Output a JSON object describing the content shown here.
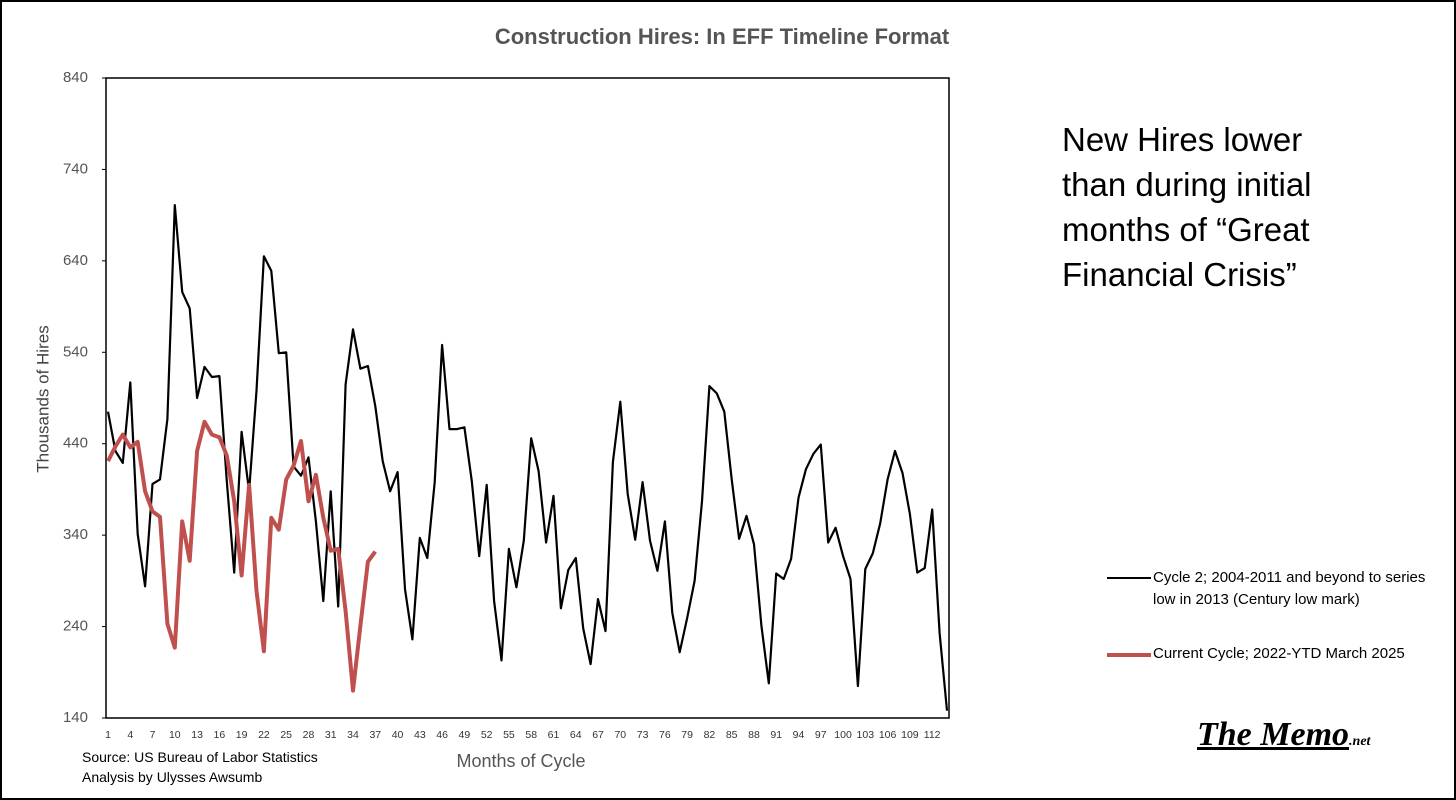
{
  "chart_data": {
    "type": "line",
    "title": "Construction Hires: In EFF Timeline Format",
    "y_label": "Thousands of Hires",
    "x_label": "Months of Cycle",
    "annotation": "New Hires lower than during initial months of “Great Financial Crisis”",
    "source": [
      "Source: US Bureau of Labor Statistics",
      "Analysis by Ulysses Awsumb"
    ],
    "logo": {
      "main": "The Memo",
      "suffix": ".net"
    },
    "categories": [
      1,
      null,
      null,
      4,
      null,
      null,
      7,
      null,
      null,
      10,
      null,
      null,
      13,
      null,
      null,
      16,
      null,
      null,
      19,
      null,
      null,
      22,
      null,
      null,
      25,
      null,
      null,
      28,
      null,
      null,
      31,
      null,
      null,
      34,
      null,
      null,
      37,
      null,
      null,
      40,
      null,
      null,
      43,
      null,
      null,
      46,
      null,
      null,
      49,
      null,
      null,
      52,
      null,
      null,
      55,
      null,
      null,
      58,
      null,
      null,
      61,
      null,
      null,
      64,
      null,
      null,
      67,
      null,
      null,
      70,
      null,
      null,
      73,
      null,
      null,
      76,
      null,
      null,
      79,
      null,
      null,
      82,
      null,
      null,
      85,
      null,
      null,
      88,
      null,
      null,
      91,
      null,
      null,
      94,
      null,
      null,
      97,
      null,
      null,
      100,
      null,
      null,
      103,
      null,
      null,
      106,
      null,
      null,
      109,
      null,
      null,
      112,
      null,
      null
    ],
    "series": [
      {
        "name": "Cycle 2; 2004-2011 and beyond to series low in 2013 (Century low mark)",
        "color": "#000000",
        "width": 2.2,
        "values": [
          475,
          432,
          419,
          507,
          341,
          284,
          396,
          401,
          467,
          701,
          606,
          588,
          490,
          524,
          513,
          514,
          399,
          299,
          453,
          388,
          498,
          645,
          629,
          539,
          540,
          415,
          405,
          425,
          355,
          268,
          388,
          262,
          505,
          565,
          522,
          525,
          481,
          421,
          388,
          409,
          281,
          226,
          337,
          315,
          398,
          548,
          456,
          456,
          458,
          399,
          317,
          395,
          268,
          203,
          325,
          283,
          334,
          446,
          410,
          332,
          383,
          260,
          302,
          315,
          238,
          199,
          270,
          235,
          420,
          486,
          385,
          335,
          398,
          334,
          301,
          355,
          255,
          212,
          249,
          290,
          377,
          503,
          495,
          475,
          401,
          336,
          361,
          330,
          241,
          178,
          298,
          292,
          314,
          381,
          412,
          429,
          439,
          332,
          348,
          317,
          292,
          175,
          303,
          320,
          353,
          401,
          432,
          408,
          363,
          299,
          304,
          368,
          233,
          148
        ]
      },
      {
        "name": "Current Cycle; 2022-YTD March 2025",
        "color": "#c0504d",
        "width": 4,
        "values": [
          421,
          437,
          450,
          436,
          442,
          388,
          366,
          360,
          243,
          217,
          355,
          312,
          432,
          464,
          450,
          447,
          427,
          377,
          296,
          395,
          279,
          213,
          359,
          346,
          401,
          416,
          443,
          377,
          406,
          359,
          323,
          325,
          257,
          170,
          241,
          311,
          322,
          null,
          null,
          null,
          null,
          null,
          null,
          null,
          null,
          null,
          null,
          null,
          null,
          null,
          null,
          null,
          null,
          null,
          null,
          null,
          null,
          null,
          null,
          null,
          null,
          null,
          null,
          null,
          null,
          null,
          null,
          null,
          null,
          null,
          null,
          null,
          null,
          null,
          null,
          null,
          null,
          null,
          null,
          null,
          null,
          null,
          null,
          null,
          null,
          null,
          null,
          null,
          null,
          null,
          null,
          null,
          null,
          null,
          null,
          null,
          null,
          null,
          null,
          null,
          null,
          null,
          null,
          null,
          null,
          null,
          null,
          null,
          null,
          null,
          null,
          null,
          null,
          null
        ]
      }
    ],
    "ylim": [
      140,
      840
    ],
    "yticks": [
      140,
      240,
      340,
      440,
      540,
      640,
      740,
      840
    ]
  }
}
